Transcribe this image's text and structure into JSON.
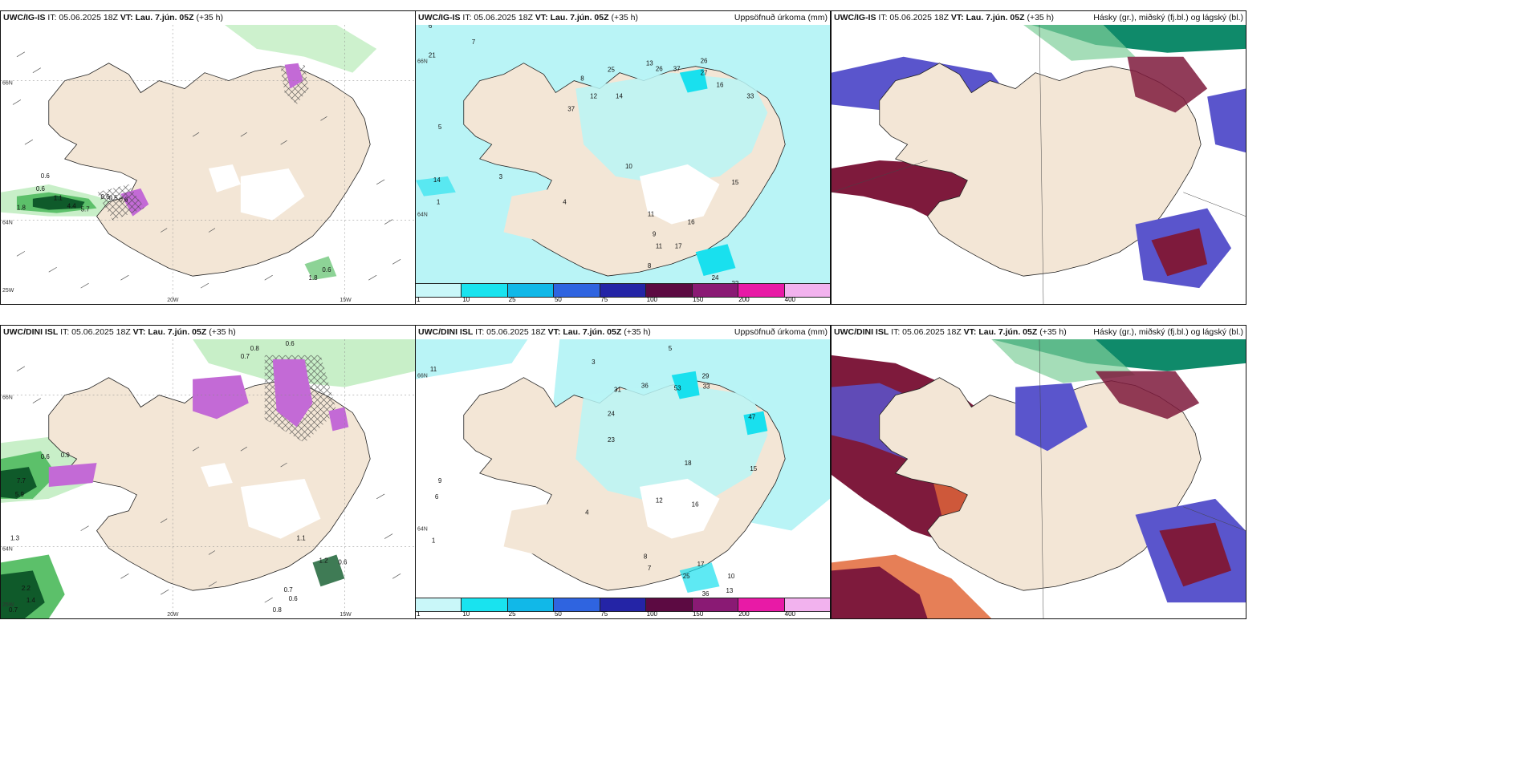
{
  "colors": {
    "land": "#f3e6d6",
    "precip_light": "#b9f4f6",
    "precip_cyan": "#19e0ee",
    "green_light": "#c8efc8",
    "green_mid": "#5cc06a",
    "green_dark": "#0f5a2a",
    "magenta": "#c36ad6",
    "cloud_blue": "#5a55cc",
    "cloud_maroon": "#7e1a3c",
    "cloud_orange": "#e2683a",
    "cloud_teal": "#0f8a6a"
  },
  "panels": {
    "top_left": {
      "model": "UWC/IG-IS",
      "it": "IT: 05.06.2025 18Z",
      "vt": "VT: Lau. 7.jún. 05Z",
      "lead": "(+35 h)",
      "lat_labels": [
        "66N",
        "64N"
      ],
      "lon_labels": [
        "25W",
        "20W",
        "15W"
      ],
      "values": [
        "0.6",
        "0.6",
        "1.8",
        "1.1",
        "4.4",
        "5.7",
        "0.6",
        "0.5",
        "0.6",
        "0.6",
        "1.8",
        "0.6"
      ]
    },
    "top_mid": {
      "model": "UWC/IG-IS",
      "it": "IT: 05.06.2025 18Z",
      "vt": "VT: Lau. 7.jún. 05Z",
      "lead": "(+35 h)",
      "title": "Uppsöfnuð úrkoma (mm)",
      "lat_labels": [
        "66N",
        "64N"
      ],
      "values": [
        "6",
        "21",
        "7",
        "5",
        "14",
        "1",
        "3",
        "37",
        "8",
        "25",
        "13",
        "26",
        "37",
        "27",
        "26",
        "16",
        "33",
        "12",
        "14",
        "10",
        "11",
        "9",
        "4",
        "24",
        "26",
        "22",
        "11",
        "17",
        "8",
        "15",
        "16"
      ]
    },
    "top_right": {
      "model": "UWC/IG-IS",
      "it": "IT: 05.06.2025 18Z",
      "vt": "VT: Lau. 7.jún. 05Z",
      "lead": "(+35 h)",
      "title": "Hásky (gr.), miðský (fj.bl.) og lágský (bl.)"
    },
    "bot_left": {
      "model": "UWC/DINI ISL",
      "it": "IT: 05.06.2025 18Z",
      "vt": "VT: Lau. 7.jún. 05Z",
      "lead": "(+35 h)",
      "lat_labels": [
        "66N",
        "64N"
      ],
      "lon_labels": [
        "25W",
        "20W",
        "15W"
      ],
      "values": [
        "0.6",
        "0.9",
        "7.7",
        "5.9",
        "1.3",
        "2.2",
        "0.7",
        "1.4",
        "1.1",
        "1.2",
        "0.6",
        "0.7",
        "0.6",
        "0.8",
        "0.7",
        "0.8",
        "0.6"
      ]
    },
    "bot_mid": {
      "model": "UWC/DINI ISL",
      "it": "IT: 05.06.2025 18Z",
      "vt": "VT: Lau. 7.jún. 05Z",
      "lead": "(+35 h)",
      "title": "Uppsöfnuð úrkoma (mm)",
      "lat_labels": [
        "66N",
        "64N"
      ],
      "values": [
        "11",
        "5",
        "3",
        "31",
        "36",
        "29",
        "53",
        "33",
        "47",
        "24",
        "23",
        "18",
        "15",
        "9",
        "6",
        "1",
        "25",
        "36",
        "13",
        "4",
        "16",
        "10",
        "17",
        "12",
        "8",
        "7"
      ]
    },
    "bot_right": {
      "model": "UWC/DINI ISL",
      "it": "IT: 05.06.2025 18Z",
      "vt": "VT: Lau. 7.jún. 05Z",
      "lead": "(+35 h)",
      "title": "Hásky (gr.), miðský (fj.bl.) og lágský (bl.)"
    }
  },
  "legend": {
    "ticks": [
      "1",
      "10",
      "25",
      "50",
      "75",
      "100",
      "150",
      "200",
      "400"
    ],
    "colors": [
      "#c9f7f9",
      "#19e3ef",
      "#11b8e8",
      "#2f64e0",
      "#2424a6",
      "#5c0a42",
      "#8a1a74",
      "#e81aa6",
      "#f2b2ee"
    ]
  }
}
